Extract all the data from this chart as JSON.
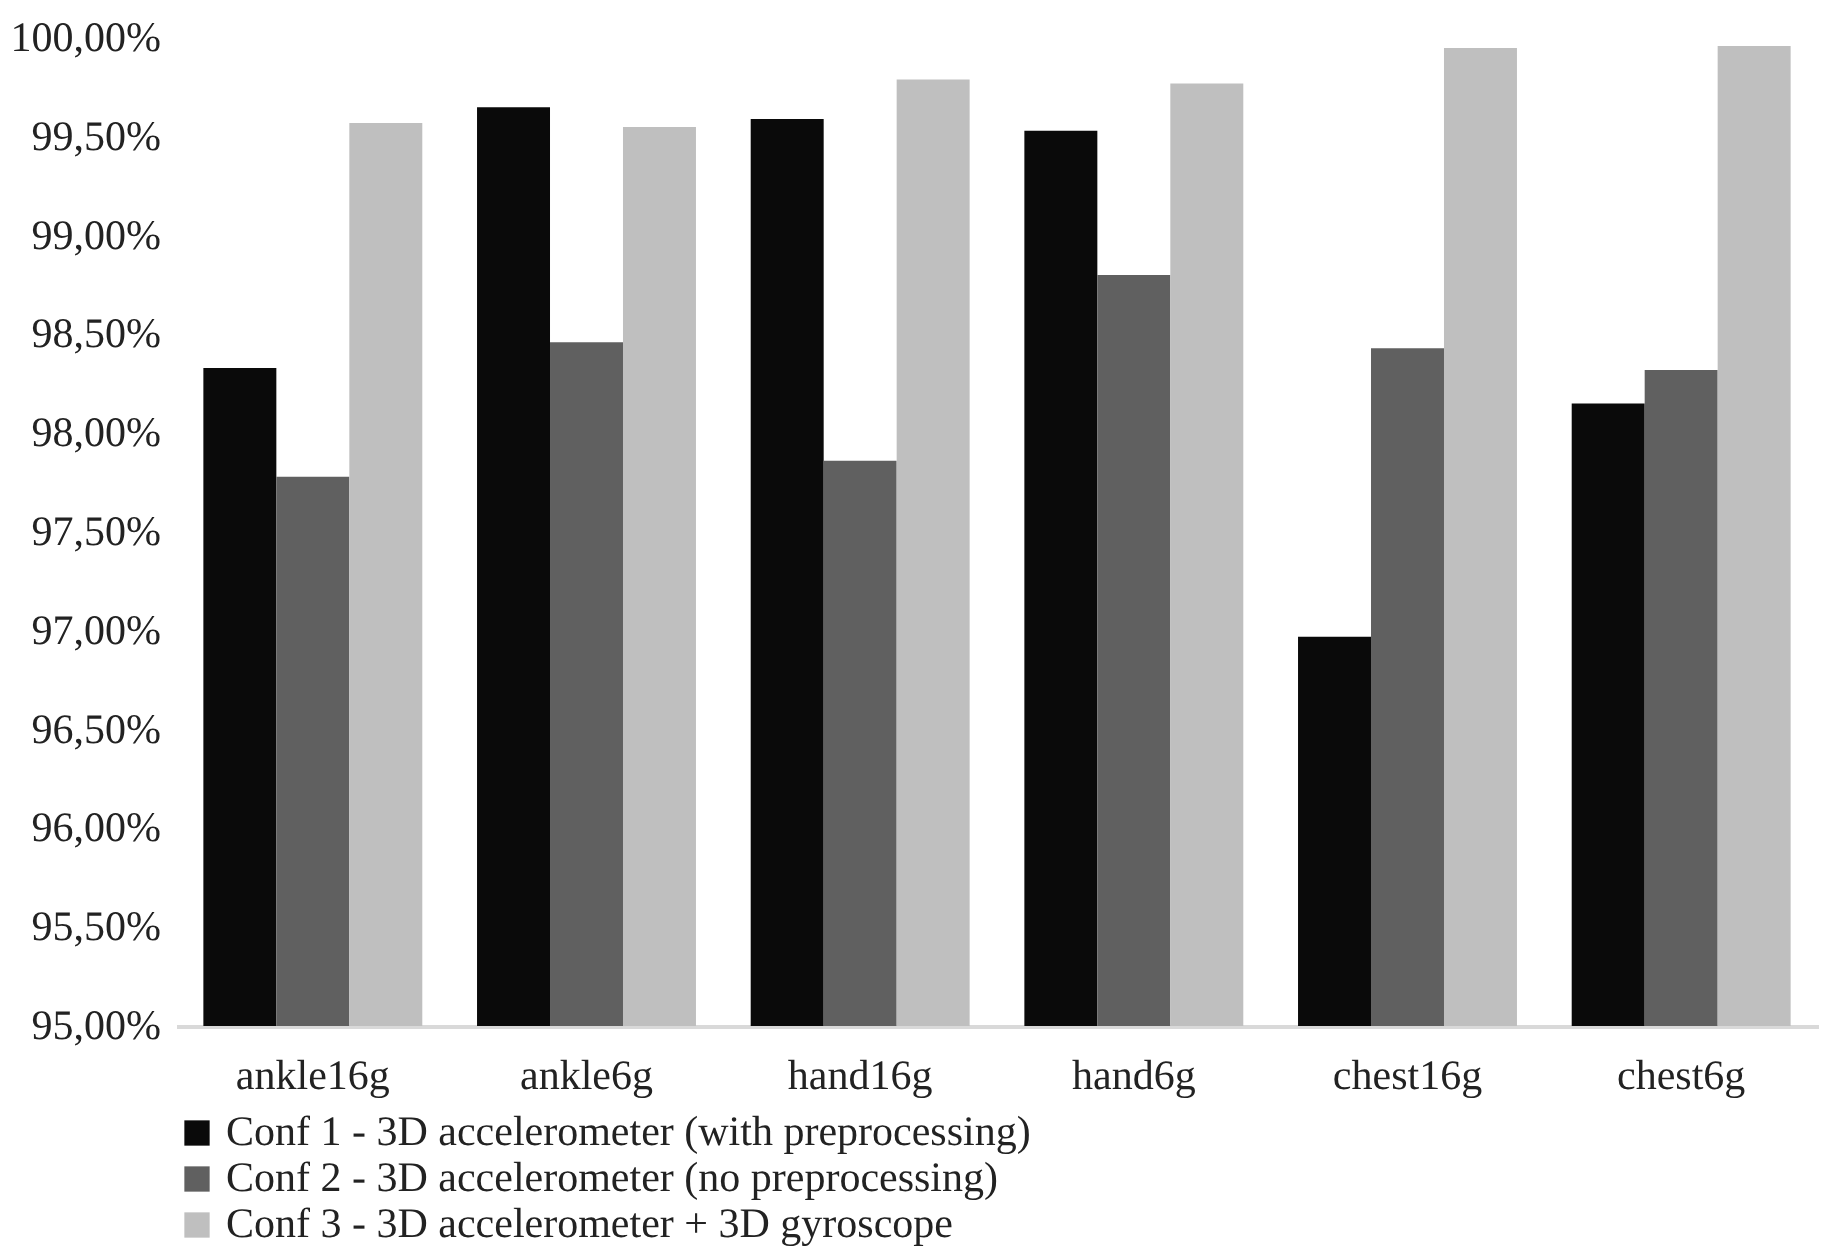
{
  "chart_data": {
    "type": "bar",
    "categories": [
      "ankle16g",
      "ankle6g",
      "hand16g",
      "hand6g",
      "chest16g",
      "chest6g"
    ],
    "series": [
      {
        "name": "Conf 1 - 3D accelerometer (with preprocessing)",
        "color": "#0a0a0a",
        "values": [
          98.33,
          99.65,
          99.59,
          99.53,
          96.97,
          98.15
        ]
      },
      {
        "name": "Conf 2 - 3D accelerometer (no preprocessing)",
        "color": "#606060",
        "values": [
          97.78,
          98.46,
          97.86,
          98.8,
          98.43,
          98.32
        ]
      },
      {
        "name": "Conf 3 - 3D accelerometer + 3D gyroscope",
        "color": "#bfbfbf",
        "values": [
          99.57,
          99.55,
          99.79,
          99.77,
          99.95,
          99.96
        ]
      }
    ],
    "ylim": [
      95,
      100
    ],
    "yticks": [
      {
        "value": 95,
        "label": "95,00%"
      },
      {
        "value": 95.5,
        "label": "95,50%"
      },
      {
        "value": 96,
        "label": "96,00%"
      },
      {
        "value": 96.5,
        "label": "96,50%"
      },
      {
        "value": 97,
        "label": "97,00%"
      },
      {
        "value": 97.5,
        "label": "97,50%"
      },
      {
        "value": 98,
        "label": "98,00%"
      },
      {
        "value": 98.5,
        "label": "98,50%"
      },
      {
        "value": 99,
        "label": "99,00%"
      },
      {
        "value": 99.5,
        "label": "99,50%"
      },
      {
        "value": 100,
        "label": "100,00%"
      }
    ],
    "grid": false,
    "legend": "bottom"
  }
}
